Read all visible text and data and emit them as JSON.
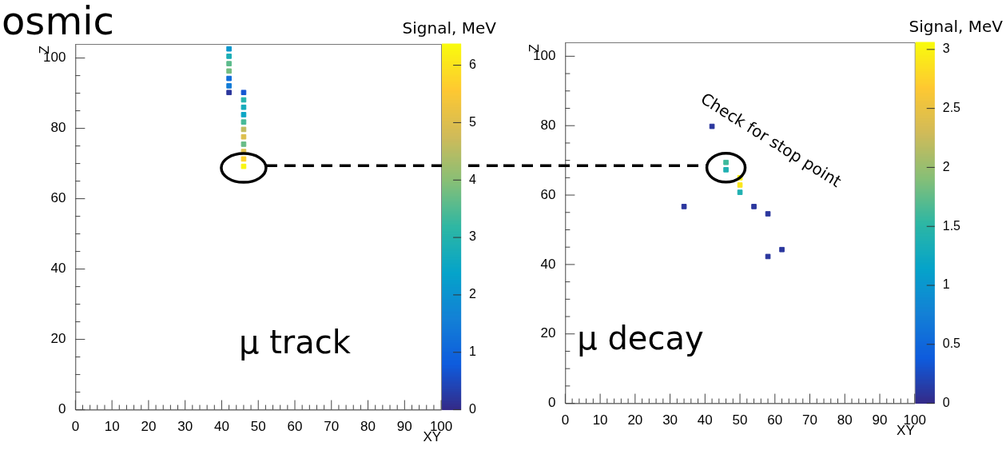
{
  "chart_data": [
    {
      "type": "scatter",
      "title": "osmic",
      "xlabel": "XY",
      "ylabel": "Z",
      "clabel": "Signal, MeV",
      "x": [
        42,
        42,
        42,
        42,
        42,
        42,
        42,
        46,
        46,
        46,
        46,
        46,
        46,
        46,
        46,
        46,
        46,
        46
      ],
      "values": [
        102.6,
        100.5,
        98.4,
        96.3,
        94.2,
        92.1,
        90.2,
        90.2,
        88.1,
        86,
        83.9,
        81.8,
        79.7,
        77.6,
        75.5,
        73.4,
        71.3,
        69.2
      ],
      "cvalues": [
        2.1,
        2.8,
        3.6,
        3.8,
        1.2,
        1.5,
        0.2,
        0.7,
        3,
        2.7,
        2.5,
        3.4,
        4.6,
        5,
        3.7,
        5,
        5.7,
        6.3
      ],
      "marker": "square",
      "clim": [
        0,
        6.37
      ],
      "cticks": [
        0,
        1,
        2,
        3,
        4,
        5,
        6
      ],
      "xlim": [
        0,
        100
      ],
      "ylim": [
        0,
        104
      ],
      "xticks": [
        0,
        {
          "value": 2,
          "label": null
        },
        {
          "value": 4,
          "label": null
        },
        {
          "value": 6,
          "label": null
        },
        {
          "value": 8,
          "label": null
        },
        10,
        {
          "value": 12,
          "label": null
        },
        {
          "value": 14,
          "label": null
        },
        {
          "value": 16,
          "label": null
        },
        {
          "value": 18,
          "label": null
        },
        20,
        {
          "value": 22,
          "label": null
        },
        {
          "value": 24,
          "label": null
        },
        {
          "value": 26,
          "label": null
        },
        {
          "value": 28,
          "label": null
        },
        30,
        {
          "value": 32,
          "label": null
        },
        {
          "value": 34,
          "label": null
        },
        {
          "value": 36,
          "label": null
        },
        {
          "value": 38,
          "label": null
        },
        40,
        {
          "value": 42,
          "label": null
        },
        {
          "value": 44,
          "label": null
        },
        {
          "value": 46,
          "label": null
        },
        {
          "value": 48,
          "label": null
        },
        50,
        {
          "value": 52,
          "label": null
        },
        {
          "value": 54,
          "label": null
        },
        {
          "value": 56,
          "label": null
        },
        {
          "value": 58,
          "label": null
        },
        60,
        {
          "value": 62,
          "label": null
        },
        {
          "value": 64,
          "label": null
        },
        {
          "value": 66,
          "label": null
        },
        {
          "value": 68,
          "label": null
        },
        70,
        {
          "value": 72,
          "label": null
        },
        {
          "value": 74,
          "label": null
        },
        {
          "value": 76,
          "label": null
        },
        {
          "value": 78,
          "label": null
        },
        80,
        {
          "value": 82,
          "label": null
        },
        {
          "value": 84,
          "label": null
        },
        {
          "value": 86,
          "label": null
        },
        {
          "value": 88,
          "label": null
        },
        90,
        {
          "value": 92,
          "label": null
        },
        {
          "value": 94,
          "label": null
        },
        {
          "value": 96,
          "label": null
        },
        {
          "value": 98,
          "label": null
        },
        100
      ],
      "yticks": [
        0,
        {
          "value": 5,
          "label": null
        },
        {
          "value": 10,
          "label": null
        },
        {
          "value": 15,
          "label": null
        },
        20,
        {
          "value": 25,
          "label": null
        },
        {
          "value": 30,
          "label": null
        },
        {
          "value": 35,
          "label": null
        },
        40,
        {
          "value": 45,
          "label": null
        },
        {
          "value": 50,
          "label": null
        },
        {
          "value": 55,
          "label": null
        },
        60,
        {
          "value": 65,
          "label": null
        },
        {
          "value": 70,
          "label": null
        },
        {
          "value": 75,
          "label": null
        },
        80,
        {
          "value": 85,
          "label": null
        },
        {
          "value": 90,
          "label": null
        },
        {
          "value": 95,
          "label": null
        },
        100
      ],
      "ref_lines": [
        {
          "axis": "y",
          "value": 69.4,
          "color": "#000000",
          "line_style": "dashed"
        }
      ],
      "annotations": [
        "μ track"
      ]
    },
    {
      "type": "scatter",
      "xlabel": "XY",
      "ylabel": "Z",
      "clabel": "Signal, MeV",
      "x": [
        42,
        46,
        46,
        50,
        50,
        50,
        34,
        54,
        58,
        58,
        62
      ],
      "values": [
        79.8,
        69.4,
        67.3,
        65,
        62.9,
        60.8,
        56.7,
        56.7,
        54.6,
        42.3,
        44.3
      ],
      "cvalues": [
        0.1,
        1.6,
        1.4,
        3,
        2.9,
        1.4,
        0.1,
        0.1,
        0.1,
        0.1,
        0.1
      ],
      "marker": "square",
      "clim": [
        0,
        3.06
      ],
      "cticks": [
        0,
        0.5,
        1,
        1.5,
        2,
        2.5,
        3
      ],
      "xlim": [
        0,
        100
      ],
      "ylim": [
        0,
        104
      ],
      "xticks": [
        0,
        {
          "value": 2,
          "label": null
        },
        {
          "value": 4,
          "label": null
        },
        {
          "value": 6,
          "label": null
        },
        {
          "value": 8,
          "label": null
        },
        10,
        {
          "value": 12,
          "label": null
        },
        {
          "value": 14,
          "label": null
        },
        {
          "value": 16,
          "label": null
        },
        {
          "value": 18,
          "label": null
        },
        20,
        {
          "value": 22,
          "label": null
        },
        {
          "value": 24,
          "label": null
        },
        {
          "value": 26,
          "label": null
        },
        {
          "value": 28,
          "label": null
        },
        30,
        {
          "value": 32,
          "label": null
        },
        {
          "value": 34,
          "label": null
        },
        {
          "value": 36,
          "label": null
        },
        {
          "value": 38,
          "label": null
        },
        40,
        {
          "value": 42,
          "label": null
        },
        {
          "value": 44,
          "label": null
        },
        {
          "value": 46,
          "label": null
        },
        {
          "value": 48,
          "label": null
        },
        50,
        {
          "value": 52,
          "label": null
        },
        {
          "value": 54,
          "label": null
        },
        {
          "value": 56,
          "label": null
        },
        {
          "value": 58,
          "label": null
        },
        60,
        {
          "value": 62,
          "label": null
        },
        {
          "value": 64,
          "label": null
        },
        {
          "value": 66,
          "label": null
        },
        {
          "value": 68,
          "label": null
        },
        70,
        {
          "value": 72,
          "label": null
        },
        {
          "value": 74,
          "label": null
        },
        {
          "value": 76,
          "label": null
        },
        {
          "value": 78,
          "label": null
        },
        80,
        {
          "value": 82,
          "label": null
        },
        {
          "value": 84,
          "label": null
        },
        {
          "value": 86,
          "label": null
        },
        {
          "value": 88,
          "label": null
        },
        90,
        {
          "value": 92,
          "label": null
        },
        {
          "value": 94,
          "label": null
        },
        {
          "value": 96,
          "label": null
        },
        {
          "value": 98,
          "label": null
        },
        100
      ],
      "yticks": [
        0,
        {
          "value": 5,
          "label": null
        },
        {
          "value": 10,
          "label": null
        },
        {
          "value": 15,
          "label": null
        },
        20,
        {
          "value": 25,
          "label": null
        },
        {
          "value": 30,
          "label": null
        },
        {
          "value": 35,
          "label": null
        },
        40,
        {
          "value": 45,
          "label": null
        },
        {
          "value": 50,
          "label": null
        },
        {
          "value": 55,
          "label": null
        },
        60,
        {
          "value": 65,
          "label": null
        },
        {
          "value": 70,
          "label": null
        },
        {
          "value": 75,
          "label": null
        },
        80,
        {
          "value": 85,
          "label": null
        },
        {
          "value": 90,
          "label": null
        },
        {
          "value": 95,
          "label": null
        },
        100
      ],
      "ref_lines": [
        {
          "axis": "y",
          "value": 68.5,
          "color": "#000000",
          "line_style": "dashed"
        }
      ],
      "annotations": [
        "μ decay",
        "Check for stop point"
      ]
    }
  ]
}
